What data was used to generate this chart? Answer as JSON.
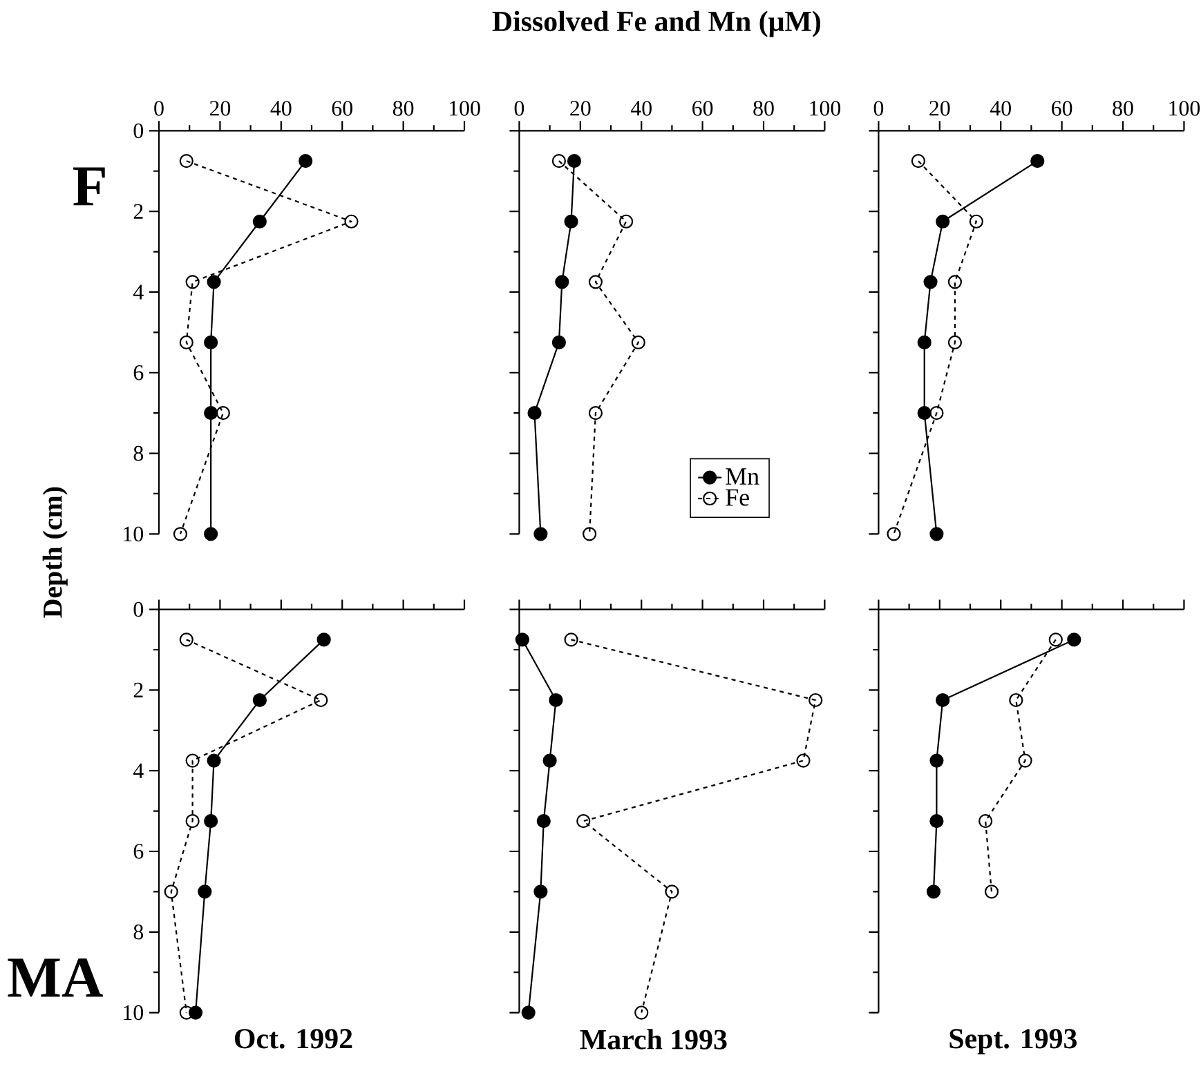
{
  "chart_data": [
    {
      "type": "line",
      "ylabel": "Depth (cm)",
      "annotations": [
        "F"
      ],
      "xlim": [
        0,
        100
      ],
      "ylim": [
        10,
        0
      ],
      "xticks": [
        0,
        20,
        40,
        60,
        80,
        100
      ],
      "yticks": [
        0,
        2,
        4,
        6,
        8,
        10
      ],
      "marker": "circle",
      "series": [
        {
          "color": "#000000",
          "line_style": "solid",
          "x": [
            48,
            33,
            18,
            17,
            17,
            17
          ],
          "values": [
            0.75,
            2.25,
            3.75,
            5.25,
            7,
            10
          ]
        },
        {
          "color": "#000000",
          "line_style": "dashed",
          "marker": "circle_open",
          "x": [
            9,
            63,
            11,
            9,
            21,
            7
          ],
          "values": [
            0.75,
            2.25,
            3.75,
            5.25,
            7,
            10
          ]
        }
      ]
    },
    {
      "type": "line",
      "xlabel": "Dissolved Fe and Mn (μM)",
      "legend": "bottom right",
      "tick_labels": "x",
      "xlim": [
        0,
        100
      ],
      "ylim": [
        10,
        0
      ],
      "xticks": [
        0,
        20,
        40,
        60,
        80,
        100
      ],
      "yticks": [
        0,
        2,
        4,
        6,
        8,
        10
      ],
      "marker": "circle",
      "series": [
        {
          "name": "Mn",
          "color": "#000000",
          "line_style": "solid",
          "x": [
            18,
            17,
            14,
            13,
            5,
            7
          ],
          "values": [
            0.75,
            2.25,
            3.75,
            5.25,
            7,
            10
          ]
        },
        {
          "name": "Fe",
          "color": "#000000",
          "line_style": "dashed",
          "marker": "circle_open",
          "x": [
            13,
            35,
            25,
            39,
            25,
            23
          ],
          "values": [
            0.75,
            2.25,
            3.75,
            5.25,
            7,
            10
          ]
        }
      ]
    },
    {
      "type": "line",
      "tick_labels": "x",
      "xlim": [
        0,
        100
      ],
      "ylim": [
        10,
        0
      ],
      "xticks": [
        0,
        20,
        40,
        60,
        80,
        100
      ],
      "yticks": [
        0,
        2,
        4,
        6,
        8,
        10
      ],
      "marker": "circle",
      "series": [
        {
          "color": "#000000",
          "line_style": "solid",
          "x": [
            52,
            21,
            17,
            15,
            15,
            19
          ],
          "values": [
            0.75,
            2.25,
            3.75,
            5.25,
            7,
            10
          ]
        },
        {
          "color": "#000000",
          "line_style": "dashed",
          "marker": "circle_open",
          "x": [
            13,
            32,
            25,
            25,
            19,
            5
          ],
          "values": [
            0.75,
            2.25,
            3.75,
            5.25,
            7,
            10
          ]
        }
      ]
    },
    {
      "type": "line",
      "xlabel": "Oct. 1992",
      "annotations": [
        "MA"
      ],
      "tick_labels": "y",
      "xlim": [
        0,
        100
      ],
      "ylim": [
        10,
        0
      ],
      "xticks": [
        0,
        20,
        40,
        60,
        80,
        100
      ],
      "yticks": [
        0,
        2,
        4,
        6,
        8,
        10
      ],
      "marker": "circle",
      "series": [
        {
          "color": "#000000",
          "line_style": "solid",
          "x": [
            54,
            33,
            18,
            17,
            15,
            12
          ],
          "values": [
            0.75,
            2.25,
            3.75,
            5.25,
            7,
            10
          ]
        },
        {
          "color": "#000000",
          "line_style": "dashed",
          "marker": "circle_open",
          "x": [
            9,
            53,
            11,
            11,
            4,
            9
          ],
          "values": [
            0.75,
            2.25,
            3.75,
            5.25,
            7,
            10
          ]
        }
      ]
    },
    {
      "type": "line",
      "xlabel": "March 1993",
      "tick_labels": false,
      "xlim": [
        0,
        100
      ],
      "ylim": [
        10,
        0
      ],
      "xticks": [
        0,
        20,
        40,
        60,
        80,
        100
      ],
      "yticks": [
        0,
        2,
        4,
        6,
        8,
        10
      ],
      "marker": "circle",
      "series": [
        {
          "color": "#000000",
          "line_style": "solid",
          "x": [
            1,
            12,
            10,
            8,
            7,
            3
          ],
          "values": [
            0.75,
            2.25,
            3.75,
            5.25,
            7,
            10
          ]
        },
        {
          "color": "#000000",
          "line_style": "dashed",
          "marker": "circle_open",
          "x": [
            17,
            97,
            93,
            21,
            50,
            40
          ],
          "values": [
            0.75,
            2.25,
            3.75,
            5.25,
            7,
            10
          ]
        }
      ]
    },
    {
      "type": "line",
      "xlabel": "Sept. 1993",
      "tick_labels": false,
      "xlim": [
        0,
        100
      ],
      "ylim": [
        10,
        0
      ],
      "xticks": [
        0,
        20,
        40,
        60,
        80,
        100
      ],
      "yticks": [
        0,
        2,
        4,
        6,
        8,
        10
      ],
      "marker": "circle",
      "series": [
        {
          "color": "#000000",
          "line_style": "solid",
          "x": [
            64,
            21,
            19,
            19,
            18
          ],
          "values": [
            0.75,
            2.25,
            3.75,
            5.25,
            7
          ]
        },
        {
          "color": "#000000",
          "line_style": "dashed",
          "marker": "circle_open",
          "x": [
            58,
            45,
            48,
            35,
            37
          ],
          "values": [
            0.75,
            2.25,
            3.75,
            5.25,
            7
          ]
        }
      ]
    }
  ]
}
